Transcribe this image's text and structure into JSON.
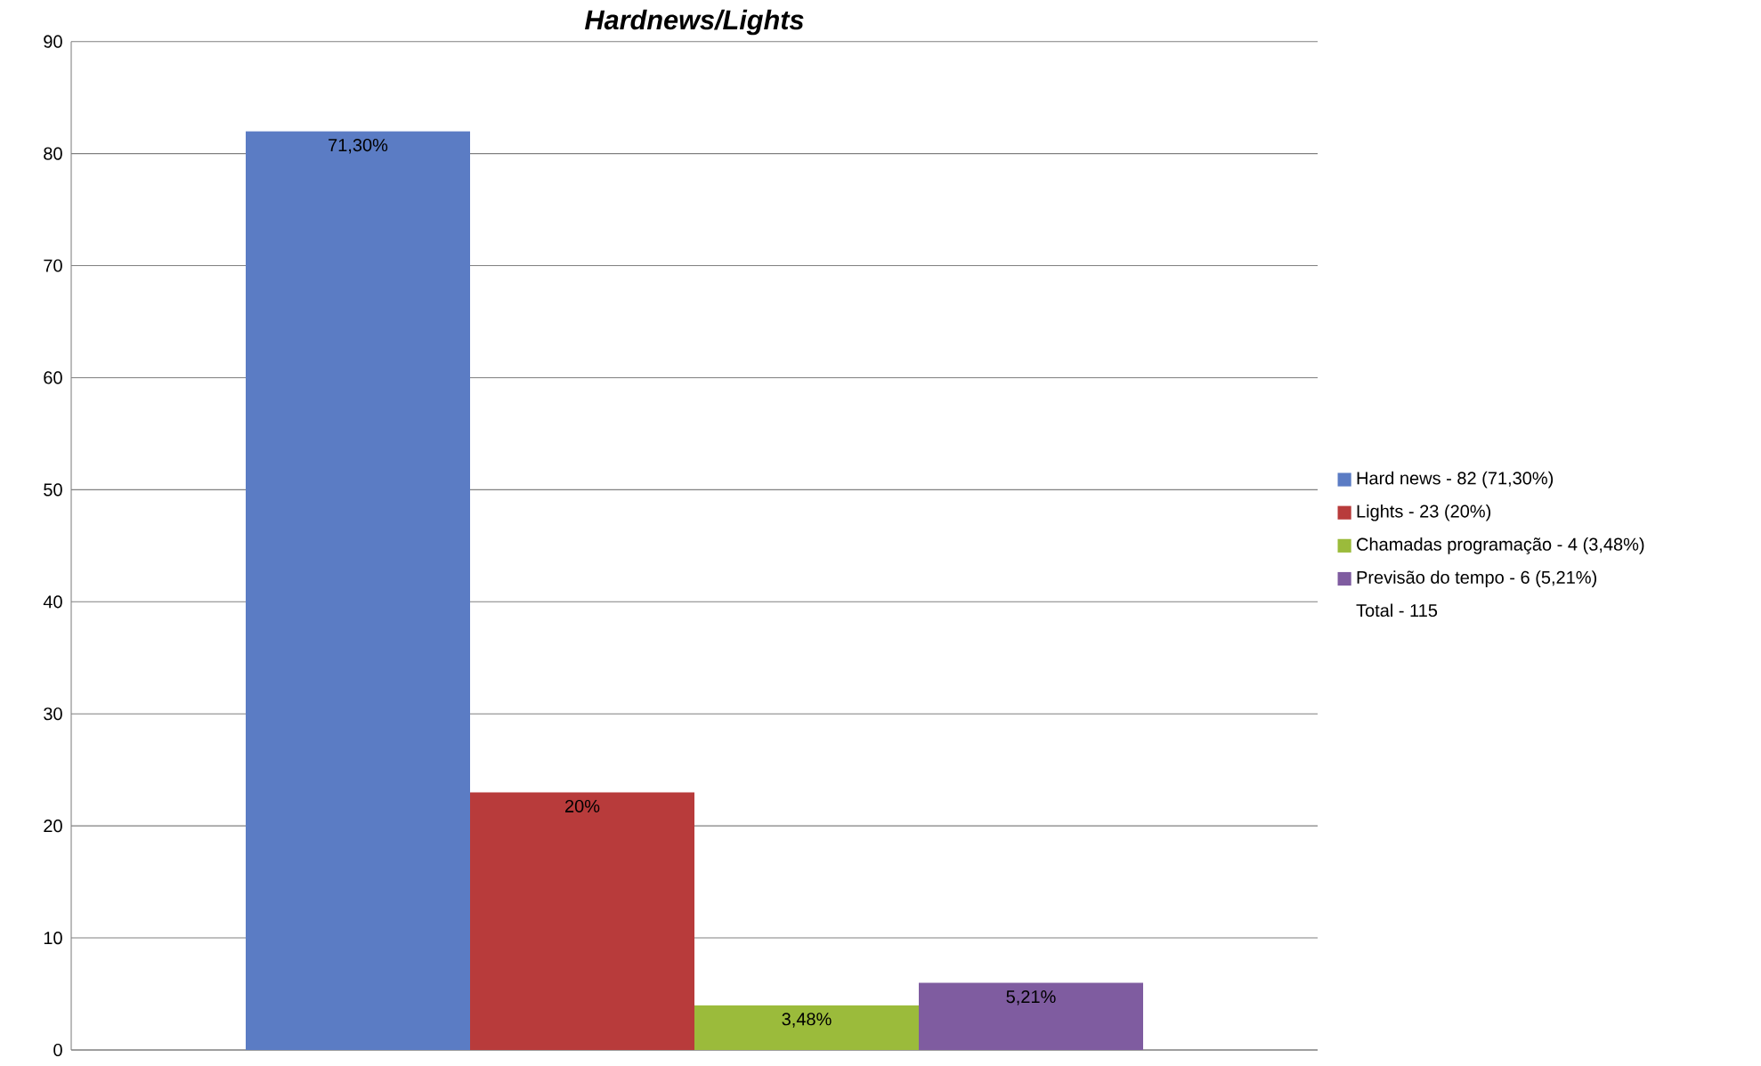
{
  "chart_data": {
    "type": "bar",
    "title": "Hardnews/Lights",
    "categories": [
      null
    ],
    "series": [
      {
        "name": "Hard news - 82 (71,30%)",
        "color": "#5b7cc4",
        "values": [
          82
        ]
      },
      {
        "name": "Lights - 23 (20%)",
        "color": "#b83b3b",
        "values": [
          23
        ]
      },
      {
        "name": "Chamadas programação - 4 (3,48%)",
        "color": "#9bbb3b",
        "values": [
          4
        ]
      },
      {
        "name": "Previsão do tempo - 6 (5,21%)",
        "color": "#7f5ca0",
        "values": [
          6
        ]
      }
    ],
    "annotations": [
      {
        "text": "71,30%",
        "y": 82
      },
      {
        "text": "20%",
        "y": 23
      },
      {
        "text": "3,48%",
        "y": 4
      },
      {
        "text": "5,21%",
        "y": 6
      },
      "Total - 115"
    ],
    "ylim": [
      0,
      90
    ],
    "yticks": [
      0,
      10,
      20,
      30,
      40,
      50,
      60,
      70,
      80,
      90
    ],
    "grid": "y",
    "legend": "right"
  }
}
